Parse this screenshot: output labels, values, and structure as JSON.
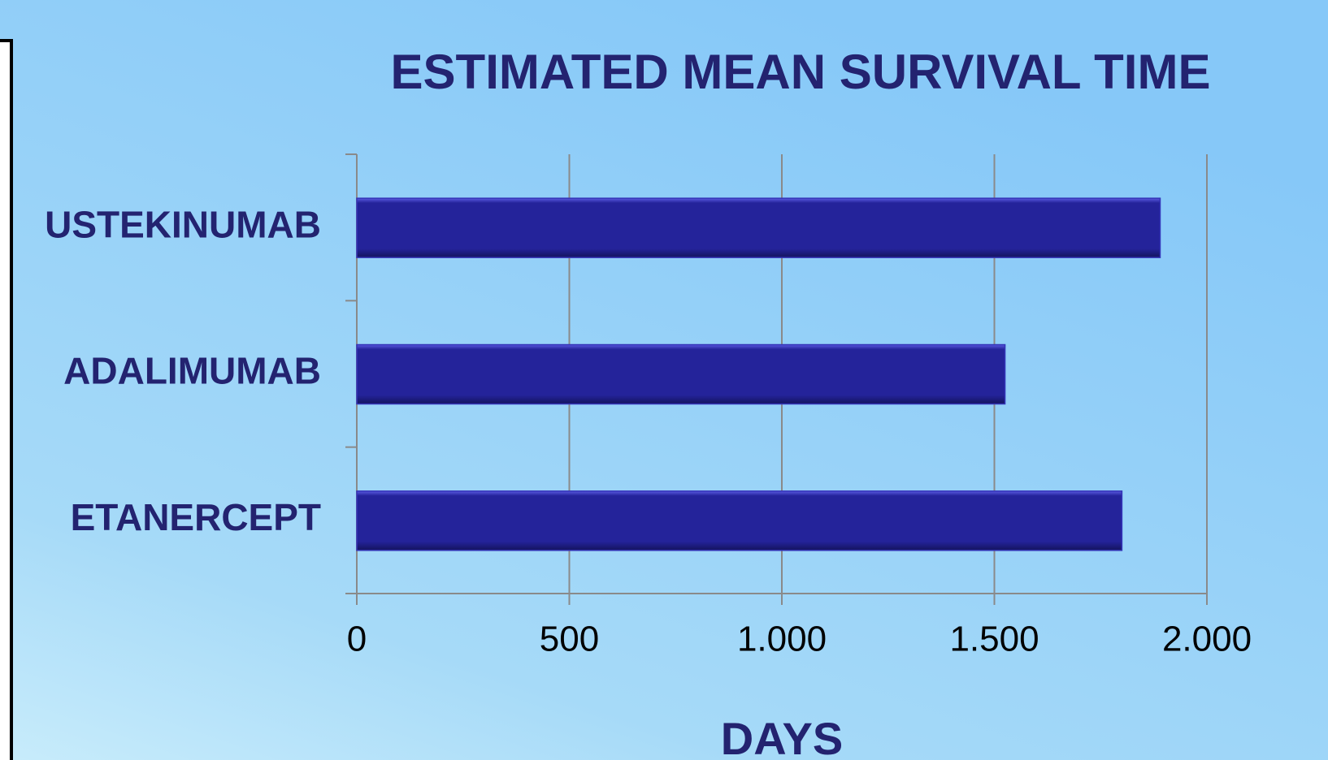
{
  "chart_data": {
    "type": "barh",
    "title": "ESTIMATED MEAN SURVIVAL TIME",
    "categories": [
      "USTEKINUMAB",
      "ADALIMUMAB",
      "ETANERCEPT"
    ],
    "values": [
      1890,
      1525,
      1800
    ],
    "color": "#24239a",
    "x_label": "DAYS",
    "xlim": [
      0,
      2000
    ],
    "xticks": [
      0,
      500,
      {
        "value": 1000,
        "label": "1.000"
      },
      {
        "value": 1500,
        "label": "1.500"
      },
      {
        "value": 2000,
        "label": "2.000"
      }
    ],
    "grid": true
  }
}
